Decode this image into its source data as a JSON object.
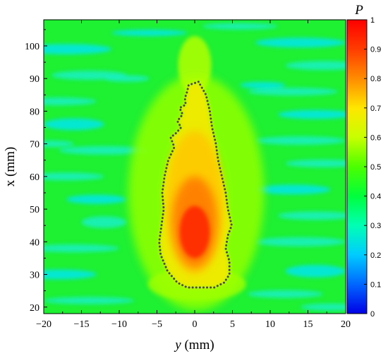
{
  "chart_data": {
    "type": "heatmap",
    "title": "",
    "xlabel": "y (mm)",
    "xlabel_var": "y",
    "xlabel_unit": " (mm)",
    "ylabel": "x (mm)",
    "xlim": [
      -20,
      20
    ],
    "ylim": [
      18,
      108
    ],
    "xticks": [
      -20,
      -15,
      -10,
      -5,
      0,
      5,
      10,
      15,
      20
    ],
    "yticks": [
      20,
      30,
      40,
      50,
      60,
      70,
      80,
      90,
      100
    ],
    "xtick_labels": [
      "−20",
      "−15",
      "−10",
      "−5",
      "0",
      "5",
      "10",
      "15",
      "20"
    ],
    "ytick_labels": [
      "20",
      "30",
      "40",
      "50",
      "60",
      "70",
      "80",
      "90",
      "100"
    ],
    "colorbar": {
      "label": "P",
      "range": [
        0,
        1
      ],
      "ticks": [
        0,
        0.1,
        0.2,
        0.3,
        0.4,
        0.5,
        0.6,
        0.7,
        0.8,
        0.9,
        1
      ],
      "tick_labels": [
        "0",
        "0.1",
        "0.2",
        "0.3",
        "0.4",
        "0.5",
        "0.6",
        "0.7",
        "0.8",
        "0.9",
        "1"
      ],
      "colors": [
        "#0000e6",
        "#0066ff",
        "#00ccff",
        "#00ffb4",
        "#00ff3c",
        "#4cff00",
        "#c8ff00",
        "#ffe600",
        "#ff8c00",
        "#ff3c00",
        "#ff0000"
      ]
    },
    "field_description": {
      "background_value": 0.4,
      "peak_value": 1.0,
      "peak_location": {
        "y": 0,
        "x": 43
      },
      "threshold_contour_value": 0.7
    },
    "threshold_contour": {
      "style": "dotted",
      "color": "#4a4a4a",
      "points": [
        [
          0.5,
          89
        ],
        [
          -0.8,
          88
        ],
        [
          -1.0,
          86
        ],
        [
          -1.3,
          84
        ],
        [
          -1.2,
          82
        ],
        [
          -2.0,
          81
        ],
        [
          -1.6,
          79
        ],
        [
          -2.3,
          77
        ],
        [
          -1.8,
          75
        ],
        [
          -2.6,
          73
        ],
        [
          -3.2,
          72
        ],
        [
          -2.7,
          69
        ],
        [
          -3.5,
          65
        ],
        [
          -4.0,
          60
        ],
        [
          -4.3,
          55
        ],
        [
          -4.1,
          50
        ],
        [
          -4.4,
          45
        ],
        [
          -4.7,
          40
        ],
        [
          -4.5,
          36
        ],
        [
          -3.6,
          31
        ],
        [
          -2.3,
          27.5
        ],
        [
          -1.0,
          26
        ],
        [
          1.0,
          26
        ],
        [
          2.6,
          26
        ],
        [
          3.9,
          27.5
        ],
        [
          4.6,
          30
        ],
        [
          4.6,
          34
        ],
        [
          4.1,
          38
        ],
        [
          4.4,
          42
        ],
        [
          4.9,
          45
        ],
        [
          4.4,
          50
        ],
        [
          4.1,
          55
        ],
        [
          3.6,
          60
        ],
        [
          3.1,
          65
        ],
        [
          2.8,
          70
        ],
        [
          2.3,
          75
        ],
        [
          2.0,
          80
        ],
        [
          1.5,
          85
        ],
        [
          0.5,
          89
        ]
      ]
    }
  }
}
